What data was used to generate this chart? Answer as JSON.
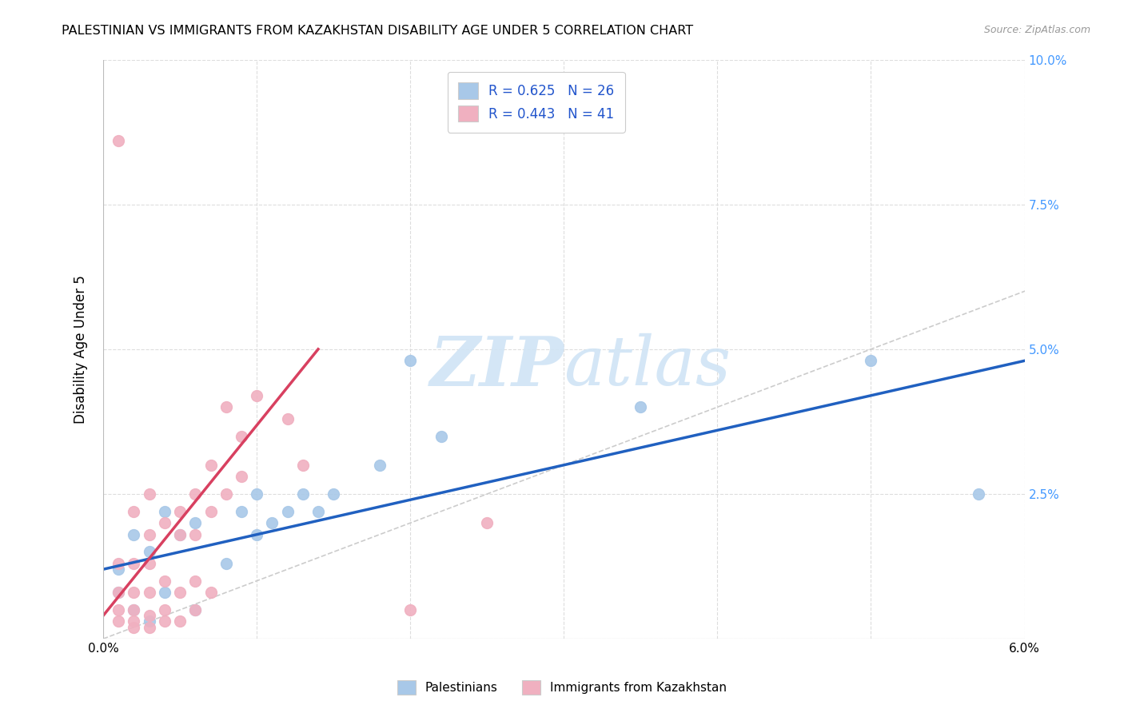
{
  "title": "PALESTINIAN VS IMMIGRANTS FROM KAZAKHSTAN DISABILITY AGE UNDER 5 CORRELATION CHART",
  "source": "Source: ZipAtlas.com",
  "ylabel": "Disability Age Under 5",
  "xlim": [
    0.0,
    0.06
  ],
  "ylim": [
    0.0,
    0.1
  ],
  "xticks": [
    0.0,
    0.01,
    0.02,
    0.03,
    0.04,
    0.05,
    0.06
  ],
  "yticks": [
    0.0,
    0.025,
    0.05,
    0.075,
    0.1
  ],
  "ytick_labels": [
    "",
    "2.5%",
    "5.0%",
    "7.5%",
    "10.0%"
  ],
  "xtick_labels": [
    "0.0%",
    "",
    "",
    "",
    "",
    "",
    "6.0%"
  ],
  "blue_R": "0.625",
  "blue_N": "26",
  "pink_R": "0.443",
  "pink_N": "41",
  "blue_color": "#a8c8e8",
  "pink_color": "#f0b0c0",
  "blue_line_color": "#2060c0",
  "pink_line_color": "#d84060",
  "diagonal_color": "#cccccc",
  "watermark_color": "#d0e4f5",
  "blue_points_x": [
    0.001,
    0.001,
    0.002,
    0.002,
    0.003,
    0.003,
    0.004,
    0.004,
    0.005,
    0.006,
    0.006,
    0.008,
    0.009,
    0.01,
    0.01,
    0.011,
    0.012,
    0.013,
    0.014,
    0.015,
    0.018,
    0.02,
    0.022,
    0.035,
    0.05,
    0.057
  ],
  "blue_points_y": [
    0.008,
    0.012,
    0.005,
    0.018,
    0.003,
    0.015,
    0.008,
    0.022,
    0.018,
    0.005,
    0.02,
    0.013,
    0.022,
    0.018,
    0.025,
    0.02,
    0.022,
    0.025,
    0.022,
    0.025,
    0.03,
    0.048,
    0.035,
    0.04,
    0.048,
    0.025
  ],
  "pink_points_x": [
    0.001,
    0.001,
    0.001,
    0.001,
    0.001,
    0.002,
    0.002,
    0.002,
    0.002,
    0.002,
    0.002,
    0.003,
    0.003,
    0.003,
    0.003,
    0.003,
    0.003,
    0.004,
    0.004,
    0.004,
    0.004,
    0.005,
    0.005,
    0.005,
    0.005,
    0.006,
    0.006,
    0.006,
    0.006,
    0.007,
    0.007,
    0.007,
    0.008,
    0.008,
    0.009,
    0.009,
    0.01,
    0.012,
    0.013,
    0.02,
    0.025
  ],
  "pink_points_y": [
    0.003,
    0.005,
    0.008,
    0.013,
    0.086,
    0.002,
    0.003,
    0.005,
    0.008,
    0.013,
    0.022,
    0.002,
    0.004,
    0.008,
    0.013,
    0.018,
    0.025,
    0.003,
    0.005,
    0.01,
    0.02,
    0.003,
    0.008,
    0.018,
    0.022,
    0.005,
    0.01,
    0.018,
    0.025,
    0.008,
    0.022,
    0.03,
    0.025,
    0.04,
    0.028,
    0.035,
    0.042,
    0.038,
    0.03,
    0.005,
    0.02
  ],
  "blue_line_x": [
    0.0,
    0.06
  ],
  "blue_line_y": [
    0.012,
    0.048
  ],
  "pink_line_x": [
    0.0,
    0.014
  ],
  "pink_line_y": [
    0.004,
    0.05
  ]
}
